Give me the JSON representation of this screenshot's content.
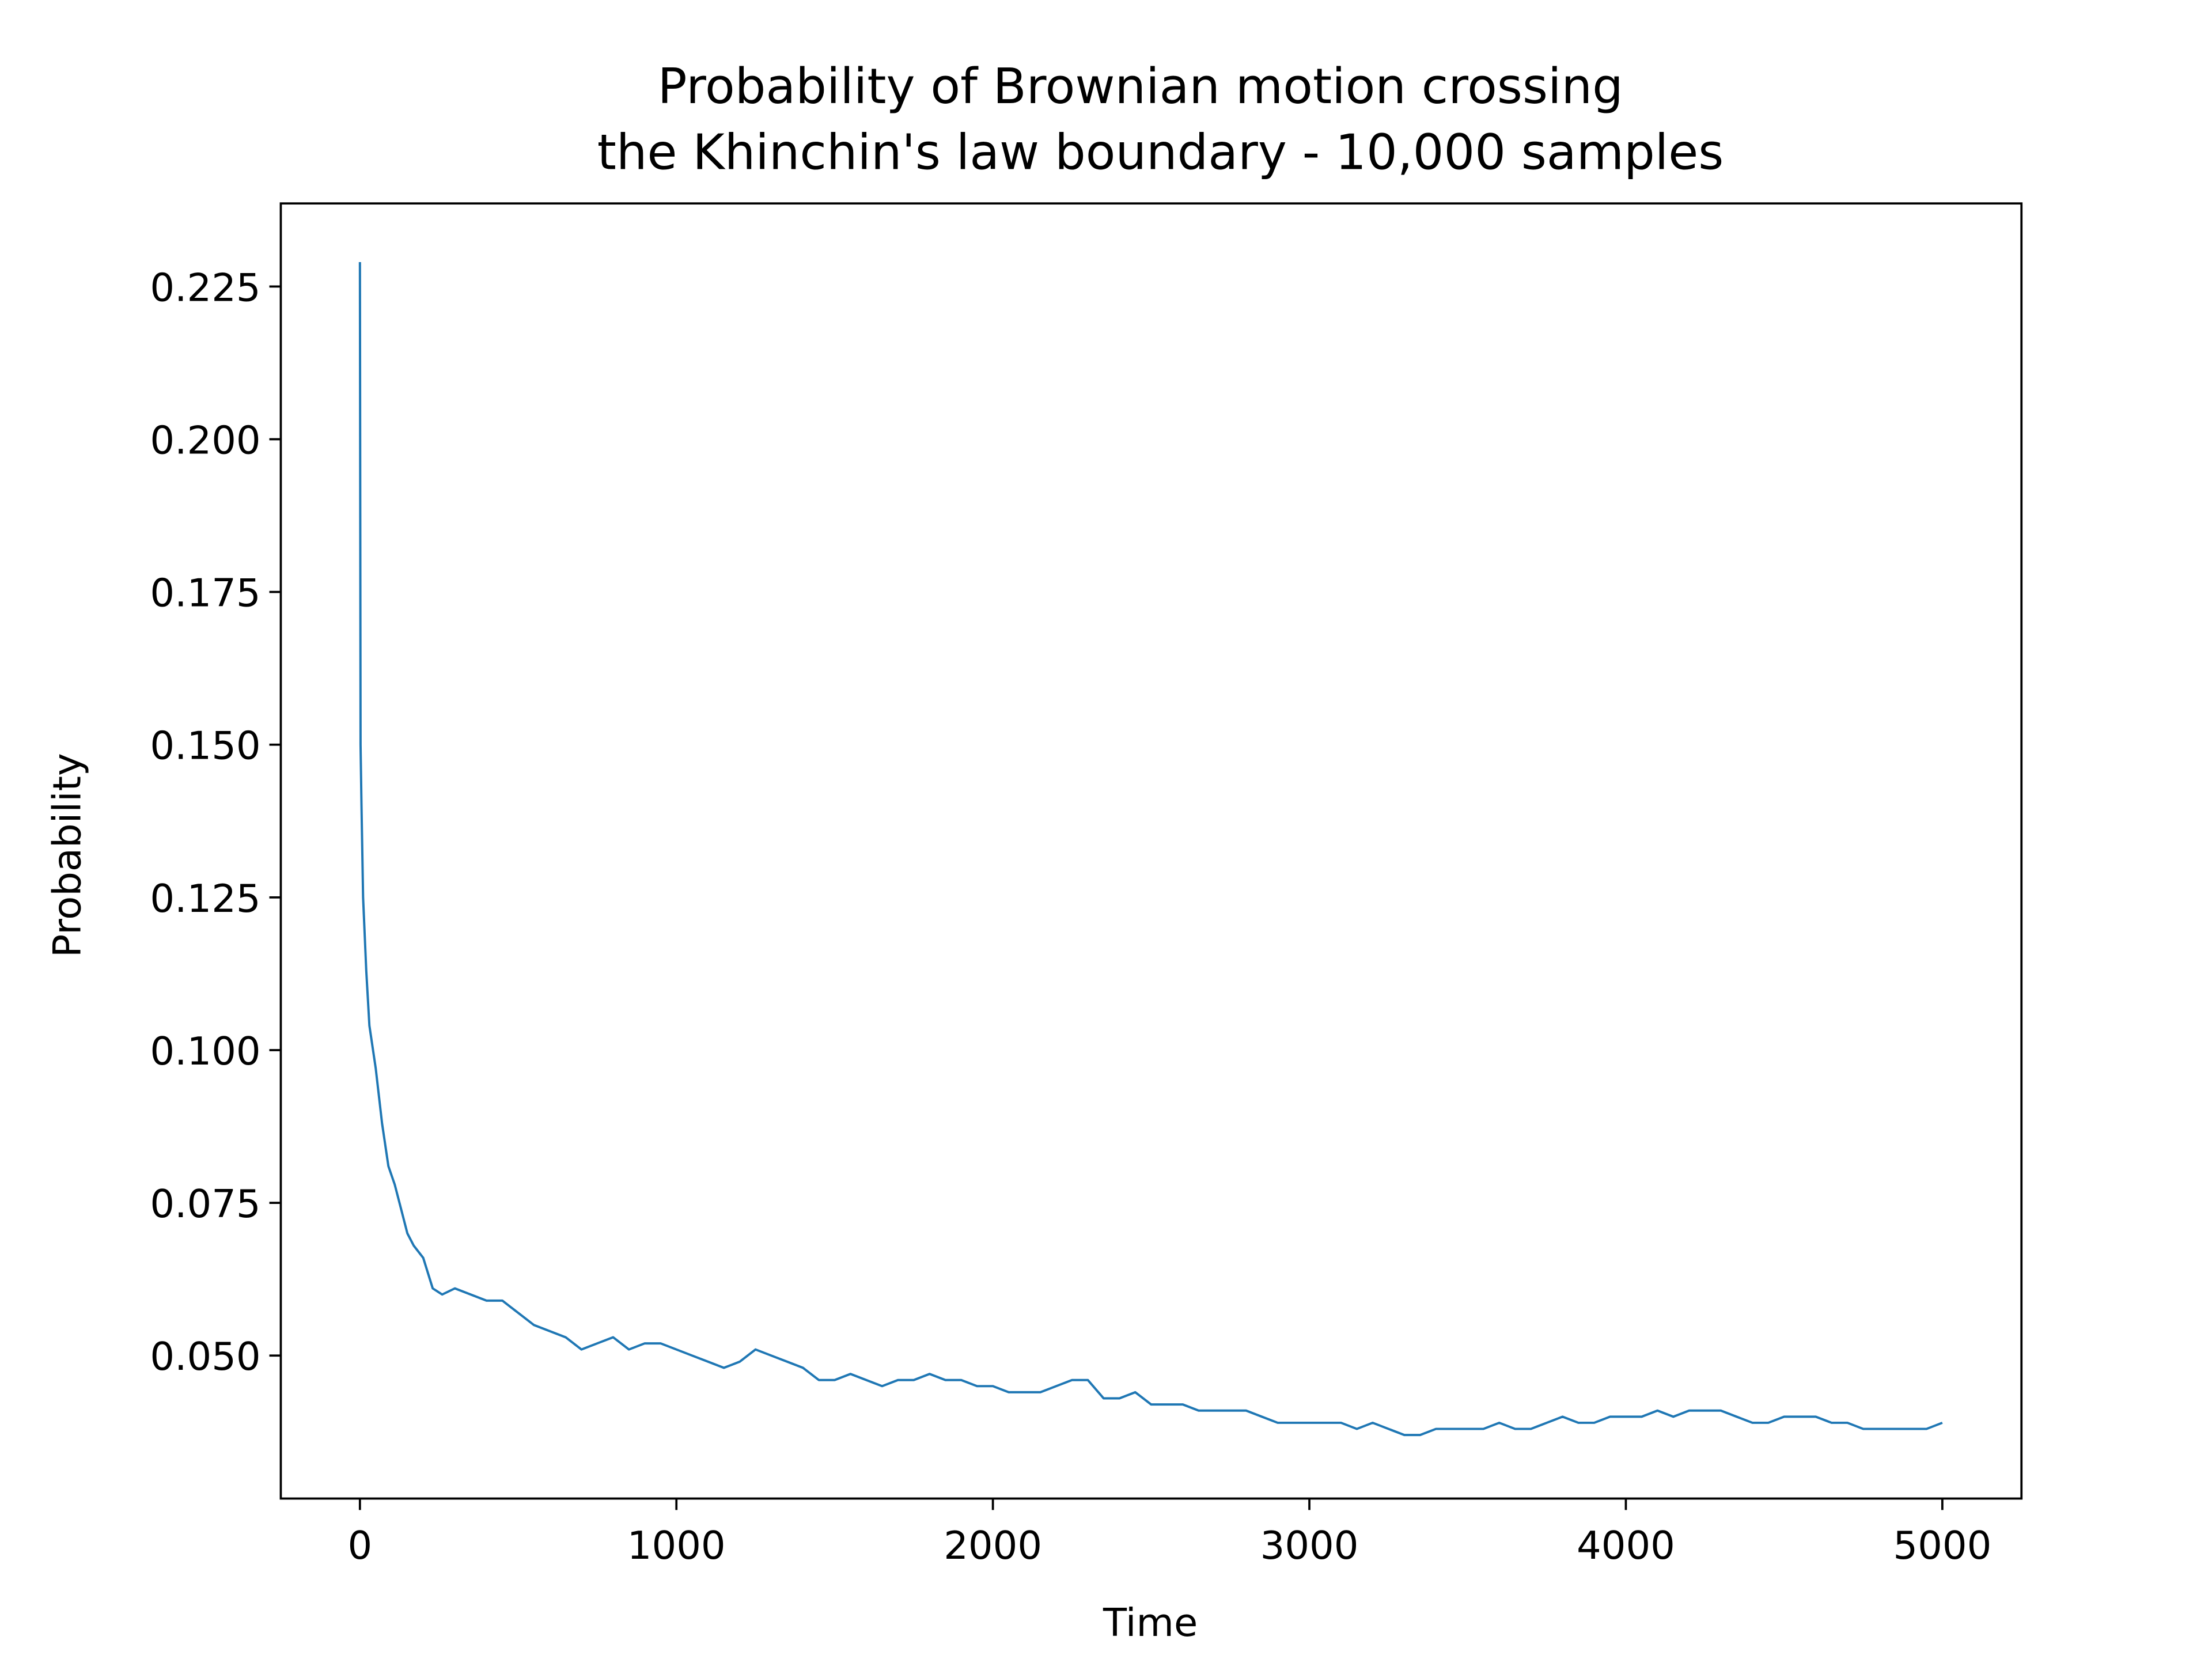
{
  "chart_data": {
    "type": "line",
    "title": [
      "Probability of Brownian motion crossing",
      "the Khinchin's law boundary - 10,000 samples"
    ],
    "xlabel": "Time",
    "ylabel": "Probability",
    "xlim": [
      -250,
      5250
    ],
    "ylim": [
      0.0266,
      0.2386
    ],
    "xticks": [
      0,
      1000,
      2000,
      3000,
      4000,
      5000
    ],
    "yticks": [
      {
        "value": 0.05,
        "label": "0.050"
      },
      {
        "value": 0.075,
        "label": "0.075"
      },
      {
        "value": 0.1,
        "label": "0.100"
      },
      {
        "value": 0.125,
        "label": "0.125"
      },
      {
        "value": 0.15,
        "label": "0.150"
      },
      {
        "value": 0.175,
        "label": "0.175"
      },
      {
        "value": 0.2,
        "label": "0.200"
      },
      {
        "value": 0.225,
        "label": "0.225"
      }
    ],
    "grid": false,
    "series": [
      {
        "color": "#1f77b4",
        "x": [
          0,
          2,
          5,
          10,
          20,
          30,
          50,
          70,
          90,
          110,
          130,
          150,
          170,
          200,
          230,
          260,
          300,
          350,
          400,
          450,
          500,
          550,
          600,
          650,
          700,
          750,
          800,
          850,
          900,
          950,
          1000,
          1050,
          1100,
          1150,
          1200,
          1250,
          1300,
          1350,
          1400,
          1450,
          1500,
          1550,
          1600,
          1650,
          1700,
          1750,
          1800,
          1850,
          1900,
          1950,
          2000,
          2050,
          2100,
          2150,
          2200,
          2250,
          2300,
          2350,
          2400,
          2450,
          2500,
          2550,
          2600,
          2650,
          2700,
          2750,
          2800,
          2850,
          2900,
          2950,
          3000,
          3050,
          3100,
          3150,
          3200,
          3250,
          3300,
          3350,
          3400,
          3450,
          3500,
          3550,
          3600,
          3650,
          3700,
          3750,
          3800,
          3850,
          3900,
          3950,
          4000,
          4050,
          4100,
          4150,
          4200,
          4250,
          4300,
          4350,
          4400,
          4450,
          4500,
          4550,
          4600,
          4650,
          4700,
          4750,
          4800,
          4850,
          4900,
          4950,
          5000
        ],
        "values": [
          0.229,
          0.15,
          0.14,
          0.125,
          0.113,
          0.104,
          0.097,
          0.088,
          0.081,
          0.078,
          0.074,
          0.07,
          0.068,
          0.066,
          0.061,
          0.06,
          0.061,
          0.06,
          0.059,
          0.059,
          0.057,
          0.055,
          0.054,
          0.053,
          0.051,
          0.052,
          0.053,
          0.051,
          0.052,
          0.052,
          0.051,
          0.05,
          0.049,
          0.048,
          0.049,
          0.051,
          0.05,
          0.049,
          0.048,
          0.046,
          0.046,
          0.047,
          0.046,
          0.045,
          0.046,
          0.046,
          0.047,
          0.046,
          0.046,
          0.045,
          0.045,
          0.044,
          0.044,
          0.044,
          0.045,
          0.046,
          0.046,
          0.043,
          0.043,
          0.044,
          0.042,
          0.042,
          0.042,
          0.041,
          0.041,
          0.041,
          0.041,
          0.04,
          0.039,
          0.039,
          0.039,
          0.039,
          0.039,
          0.038,
          0.039,
          0.038,
          0.037,
          0.037,
          0.038,
          0.038,
          0.038,
          0.038,
          0.039,
          0.038,
          0.038,
          0.039,
          0.04,
          0.039,
          0.039,
          0.04,
          0.04,
          0.04,
          0.041,
          0.04,
          0.041,
          0.041,
          0.041,
          0.04,
          0.039,
          0.039,
          0.04,
          0.04,
          0.04,
          0.039,
          0.039,
          0.038,
          0.038,
          0.038,
          0.038,
          0.038,
          0.039
        ]
      }
    ]
  }
}
